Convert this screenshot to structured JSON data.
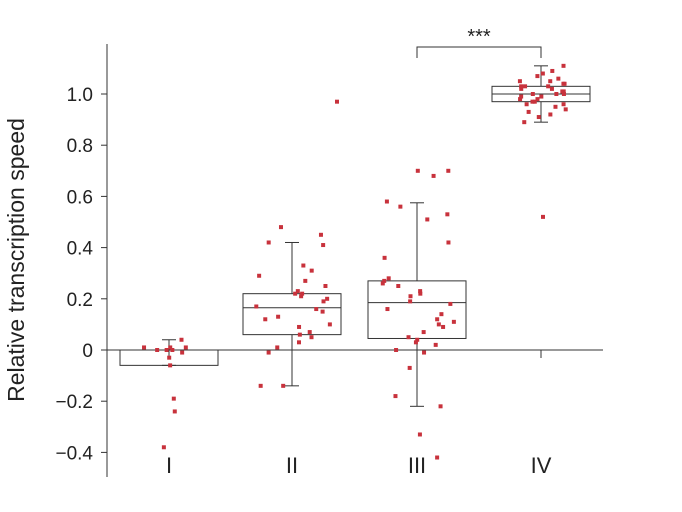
{
  "chart_data": {
    "type": "box",
    "ylabel": "Relative transcription speed",
    "ylim": [
      -0.5,
      1.2
    ],
    "yticks": [
      -0.4,
      -0.2,
      0,
      0.2,
      0.4,
      0.6,
      0.8,
      1.0
    ],
    "ytick_labels": [
      "−0.4",
      "−0.2",
      "0",
      "0.2",
      "0.4",
      "0.6",
      "0.8",
      "1.0"
    ],
    "categories": [
      "I",
      "II",
      "III",
      "IV"
    ],
    "point_color": "#c8323c",
    "boxes": [
      {
        "category": "I",
        "whisker_low": -0.06,
        "q1": -0.06,
        "median": 0.0,
        "q3": 0.0,
        "whisker_high": 0.04
      },
      {
        "category": "II",
        "whisker_low": -0.14,
        "q1": 0.06,
        "median": 0.165,
        "q3": 0.22,
        "whisker_high": 0.42
      },
      {
        "category": "III",
        "whisker_low": -0.22,
        "q1": 0.045,
        "median": 0.185,
        "q3": 0.27,
        "whisker_high": 0.575
      },
      {
        "category": "IV",
        "whisker_low": 0.89,
        "q1": 0.97,
        "median": 1.0,
        "q3": 1.03,
        "whisker_high": 1.11
      }
    ],
    "points": [
      {
        "category": "I",
        "values": [
          0.04,
          0.0,
          0.0,
          0.0,
          0.01,
          -0.01,
          -0.03,
          0.01,
          -0.06,
          0.01,
          -0.19,
          -0.24,
          -0.38
        ]
      },
      {
        "category": "II",
        "values": [
          0.97,
          0.48,
          0.45,
          0.42,
          0.41,
          0.33,
          0.31,
          0.29,
          0.27,
          0.25,
          0.23,
          0.22,
          0.22,
          0.21,
          0.2,
          0.19,
          0.17,
          0.16,
          0.15,
          0.13,
          0.12,
          0.1,
          0.09,
          0.07,
          0.06,
          0.05,
          0.03,
          0.01,
          -0.01,
          -0.14,
          -0.14
        ]
      },
      {
        "category": "III",
        "values": [
          0.7,
          0.7,
          0.68,
          0.58,
          0.56,
          0.53,
          0.51,
          0.42,
          0.36,
          0.28,
          0.27,
          0.26,
          0.25,
          0.23,
          0.22,
          0.21,
          0.19,
          0.18,
          0.16,
          0.14,
          0.12,
          0.11,
          0.1,
          0.09,
          0.07,
          0.05,
          0.04,
          0.03,
          0.02,
          0.0,
          -0.01,
          -0.07,
          -0.18,
          -0.22,
          -0.33,
          -0.42
        ]
      },
      {
        "category": "IV",
        "values": [
          1.11,
          1.09,
          1.08,
          1.07,
          1.06,
          1.05,
          1.05,
          1.04,
          1.04,
          1.03,
          1.03,
          1.03,
          1.02,
          1.02,
          1.01,
          1.01,
          1.0,
          1.0,
          1.0,
          0.99,
          0.99,
          0.98,
          0.98,
          0.97,
          0.97,
          0.96,
          0.96,
          0.95,
          0.94,
          0.93,
          0.92,
          0.91,
          0.89,
          0.52
        ]
      }
    ],
    "significance": {
      "from": "III",
      "to": "IV",
      "label": "***"
    }
  }
}
